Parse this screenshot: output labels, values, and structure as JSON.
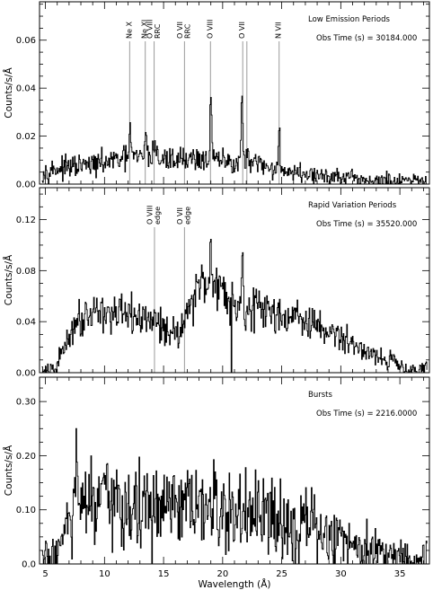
{
  "chart_data": [
    {
      "type": "line",
      "panel": "top",
      "xlabel": "Wavelength (Å)",
      "ylabel": "Counts/s/Å",
      "xlim": [
        4.5,
        37.5
      ],
      "ylim": [
        0,
        0.076
      ],
      "x_ticks": [
        5,
        10,
        15,
        20,
        25,
        30,
        35
      ],
      "y_ticks": [
        0.0,
        0.02,
        0.04,
        0.06
      ],
      "y_tick_labels": [
        "0.00",
        "0.02",
        "0.04",
        "0.06"
      ],
      "annotations": [
        "Low Emission Periods",
        "Obs Time (s) = 30184.000"
      ],
      "line_markers": [
        {
          "x": 12.13,
          "lines": [
            "Ne X"
          ]
        },
        {
          "x": 13.45,
          "lines": [
            "Ne XI"
          ]
        },
        {
          "x": 14.2,
          "lines": [
            "O VIII",
            "RRC"
          ]
        },
        {
          "x": 16.77,
          "lines": [
            "O VII",
            "RRC"
          ]
        },
        {
          "x": 18.97,
          "lines": [
            "O VIII"
          ]
        },
        {
          "x": 21.7,
          "lines": [
            "O VII"
          ]
        },
        {
          "x": 22.05,
          "lines": []
        },
        {
          "x": 24.78,
          "lines": [
            "N VII"
          ]
        }
      ],
      "profile": {
        "x_range": [
          4.7,
          37.3
        ],
        "continuum_x": [
          4.7,
          5.5,
          7,
          9,
          11,
          13,
          15,
          17,
          19,
          21,
          23,
          25,
          27,
          29,
          31,
          33,
          35,
          37.3
        ],
        "continuum_y": [
          0.005,
          0.006,
          0.007,
          0.008,
          0.01,
          0.011,
          0.01,
          0.011,
          0.01,
          0.009,
          0.008,
          0.006,
          0.004,
          0.003,
          0.002,
          0.0015,
          0.001,
          0.0008
        ],
        "lines": [
          {
            "x": 12.13,
            "peak": 0.013,
            "width": 0.08
          },
          {
            "x": 13.45,
            "peak": 0.012,
            "width": 0.08
          },
          {
            "x": 14.2,
            "peak": 0.006,
            "width": 0.15
          },
          {
            "x": 18.97,
            "peak": 0.033,
            "width": 0.06
          },
          {
            "x": 21.6,
            "peak": 0.026,
            "width": 0.08
          },
          {
            "x": 22.1,
            "peak": 0.005,
            "width": 0.06
          },
          {
            "x": 24.78,
            "peak": 0.014,
            "width": 0.07
          }
        ],
        "noise": 0.004,
        "deep_dips": []
      }
    },
    {
      "type": "line",
      "panel": "middle",
      "xlabel": "Wavelength (Å)",
      "ylabel": "Counts/s/Å",
      "xlim": [
        4.5,
        37.5
      ],
      "ylim": [
        0,
        0.145
      ],
      "x_ticks": [
        5,
        10,
        15,
        20,
        25,
        30,
        35
      ],
      "y_ticks": [
        0.0,
        0.04,
        0.08,
        0.12
      ],
      "y_tick_labels": [
        "0.00",
        "0.04",
        "0.08",
        "0.12"
      ],
      "annotations": [
        "Rapid Variation Periods",
        "Obs Time (s) = 35520.000"
      ],
      "line_markers": [
        {
          "x": 14.23,
          "lines": [
            "O VIII",
            "edge"
          ]
        },
        {
          "x": 16.77,
          "lines": [
            "O VII",
            "edge"
          ]
        }
      ],
      "profile": {
        "x_range": [
          4.7,
          37.3
        ],
        "continuum_x": [
          4.7,
          5.8,
          6.3,
          7.5,
          9,
          11,
          13,
          14.2,
          15,
          16,
          16.7,
          17.2,
          18,
          19,
          20,
          21,
          22,
          23,
          25,
          27,
          29,
          31,
          33,
          35,
          36.5,
          37.3
        ],
        "continuum_y": [
          0.0,
          0.002,
          0.015,
          0.04,
          0.05,
          0.045,
          0.043,
          0.04,
          0.036,
          0.03,
          0.04,
          0.055,
          0.068,
          0.072,
          0.065,
          0.055,
          0.05,
          0.05,
          0.046,
          0.04,
          0.032,
          0.022,
          0.014,
          0.006,
          0.002,
          0.001
        ],
        "lines": [
          {
            "x": 18.97,
            "peak": 0.03,
            "width": 0.08
          },
          {
            "x": 21.65,
            "peak": 0.045,
            "width": 0.06
          }
        ],
        "noise": 0.008,
        "deep_dips": [
          {
            "x": 20.7,
            "y": 0.0
          }
        ]
      }
    },
    {
      "type": "line",
      "panel": "bottom",
      "xlabel": "Wavelength (Å)",
      "ylabel": "Counts/s/Å",
      "xlim": [
        4.5,
        37.5
      ],
      "ylim": [
        0,
        0.345
      ],
      "x_ticks": [
        5,
        10,
        15,
        20,
        25,
        30,
        35
      ],
      "y_ticks": [
        0.0,
        0.1,
        0.2,
        0.3
      ],
      "y_tick_labels": [
        "0.0",
        "0.10",
        "0.20",
        "0.30"
      ],
      "annotations": [
        "Bursts",
        "Obs Time (s) = 2216.0000"
      ],
      "line_markers": [],
      "profile": {
        "x_range": [
          4.7,
          37.3
        ],
        "continuum_x": [
          4.7,
          5.5,
          6.5,
          7.5,
          9,
          11,
          13,
          15,
          17,
          19,
          21,
          23,
          25,
          27,
          29,
          31,
          33,
          35,
          37.3
        ],
        "continuum_y": [
          0.01,
          0.01,
          0.05,
          0.1,
          0.11,
          0.11,
          0.1,
          0.1,
          0.1,
          0.1,
          0.09,
          0.085,
          0.08,
          0.07,
          0.05,
          0.04,
          0.025,
          0.015,
          0.005
        ],
        "lines": [
          {
            "x": 7.6,
            "peak": 0.17,
            "width": 0.04
          }
        ],
        "noise": 0.045,
        "deep_dips": []
      }
    }
  ]
}
